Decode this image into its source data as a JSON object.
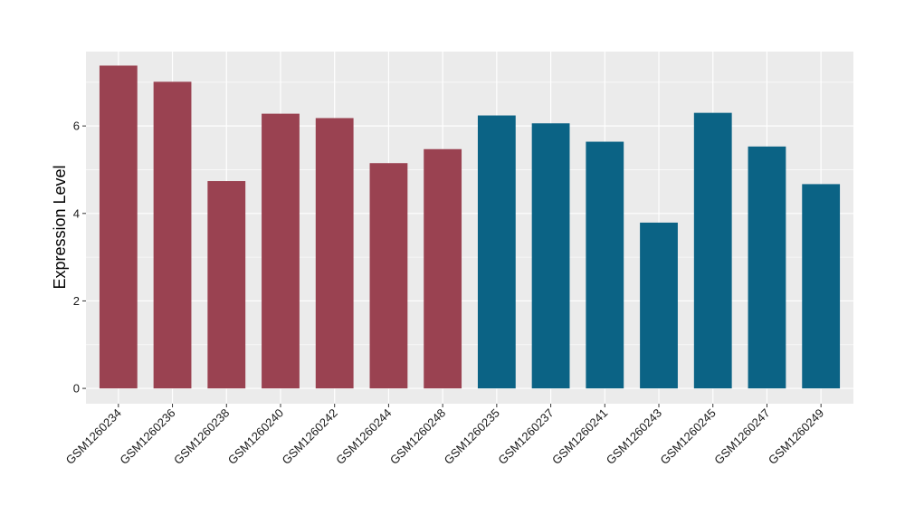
{
  "chart_data": {
    "type": "bar",
    "categories": [
      "GSM1260234",
      "GSM1260236",
      "GSM1260238",
      "GSM1260240",
      "GSM1260242",
      "GSM1260244",
      "GSM1260248",
      "GSM1260235",
      "GSM1260237",
      "GSM1260241",
      "GSM1260243",
      "GSM1260245",
      "GSM1260247",
      "GSM1260249"
    ],
    "values": [
      7.38,
      7.01,
      4.74,
      6.28,
      6.18,
      5.15,
      5.47,
      6.24,
      6.06,
      5.64,
      3.79,
      6.3,
      5.53,
      4.67
    ],
    "group_colors": [
      "#9a4251",
      "#9a4251",
      "#9a4251",
      "#9a4251",
      "#9a4251",
      "#9a4251",
      "#9a4251",
      "#0b6385",
      "#0b6385",
      "#0b6385",
      "#0b6385",
      "#0b6385",
      "#0b6385",
      "#0b6385"
    ],
    "ylabel": "Expression Level",
    "xlabel": "",
    "ylim": [
      -0.35,
      7.7
    ],
    "yticks": [
      0,
      2,
      4,
      6
    ],
    "grid": true,
    "panel_background": "#ebebeb",
    "grid_color": "#ffffff"
  }
}
